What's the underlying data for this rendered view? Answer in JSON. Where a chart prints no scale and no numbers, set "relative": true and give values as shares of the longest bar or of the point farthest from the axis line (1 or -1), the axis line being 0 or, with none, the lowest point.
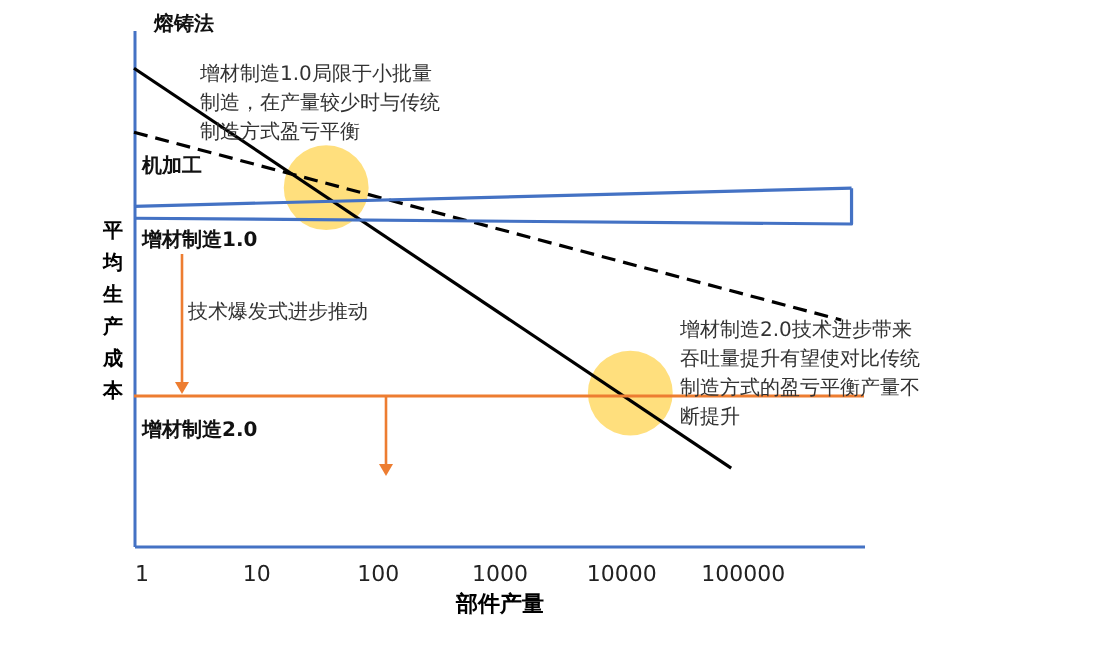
{
  "chart_data": {
    "type": "line",
    "relative": true,
    "log": "x",
    "xlabel": "部件产量",
    "ylabel": "平均生产成本",
    "xlim": [
      1,
      1000000
    ],
    "xticks": [
      1,
      10,
      100,
      1000,
      10000,
      100000
    ],
    "tick_labels": "x",
    "legend": false,
    "series": [
      {
        "name": "熔铸法",
        "color": "#000000",
        "x": [
          1,
          81000
        ],
        "values": [
          1,
          0.163
        ]
      },
      {
        "name": "机加工",
        "color": "#000000",
        "line_style": "dashed",
        "x": [
          1,
          650000
        ],
        "values": [
          0.866,
          0.473
        ]
      },
      {
        "name": "增材制造1.0",
        "color": "#4472c4",
        "x": [
          1,
          790000
        ],
        "values": [
          0.711,
          0.749
        ]
      },
      {
        "color": "#4472c4",
        "x": [
          1,
          790000,
          790000
        ],
        "values": [
          0.686,
          0.674,
          0.749
        ]
      },
      {
        "name": "增材制造2.0",
        "color": "#ed7d31",
        "x": [
          1,
          1000000
        ],
        "values": [
          0.314,
          0.314
        ]
      },
      {
        "type": "scatter",
        "marker": "circle",
        "color": "#ffd966",
        "x": [
          38,
          12000
        ],
        "values": [
          0.75,
          0.32
        ]
      }
    ],
    "annotations": [
      "增材制造1.0局限于小批量制造，在产量较少时与传统制造方式盈亏平衡",
      "增材制造2.0技术进步带来吞吐量提升有望使对比传统制造方式的盈亏平衡产量不断提升",
      "技术爆发式进步推动"
    ]
  }
}
